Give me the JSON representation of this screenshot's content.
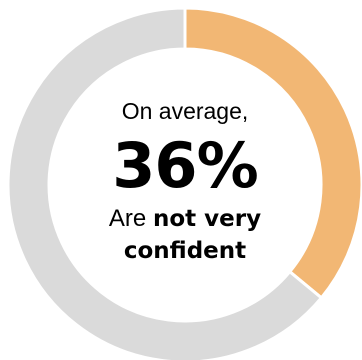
{
  "chart_data": {
    "type": "pie",
    "style": "donut",
    "slices": [
      {
        "label": "not very confident",
        "value": 36,
        "color": "#F2B774"
      },
      {
        "label": "remainder",
        "value": 64,
        "color": "#DADADA"
      }
    ],
    "center": {
      "intro": "On average,",
      "value_text": "36%",
      "desc_prefix": "Are",
      "desc_bold_1": "not very",
      "desc_bold_2": "confident"
    }
  }
}
